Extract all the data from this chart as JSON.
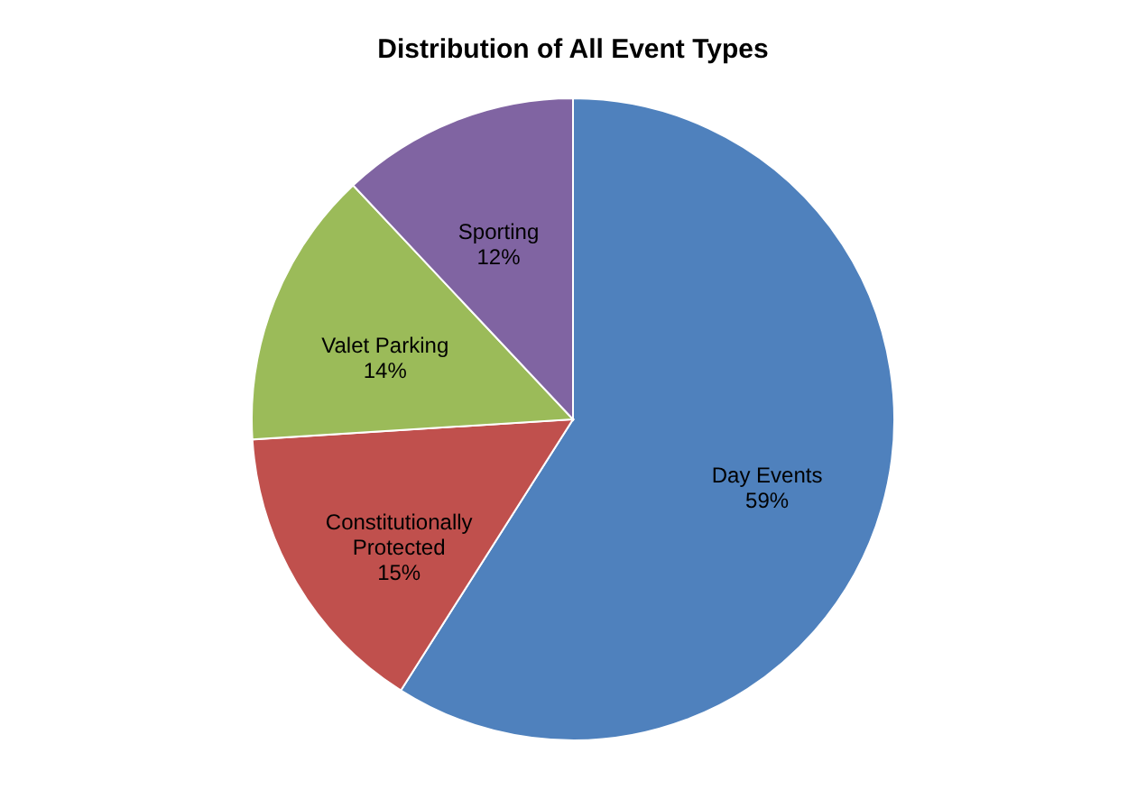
{
  "chart_data": {
    "type": "pie",
    "title": "Distribution of All Event Types",
    "categories": [
      "Day Events",
      "Constitutionally Protected",
      "Valet Parking",
      "Sporting"
    ],
    "values": [
      59,
      15,
      14,
      12
    ],
    "value_labels": [
      "59%",
      "15%",
      "14%",
      "12%"
    ],
    "colors": [
      "#4f81bd",
      "#c0504d",
      "#9bbb59",
      "#8064a2"
    ],
    "legend": false
  }
}
